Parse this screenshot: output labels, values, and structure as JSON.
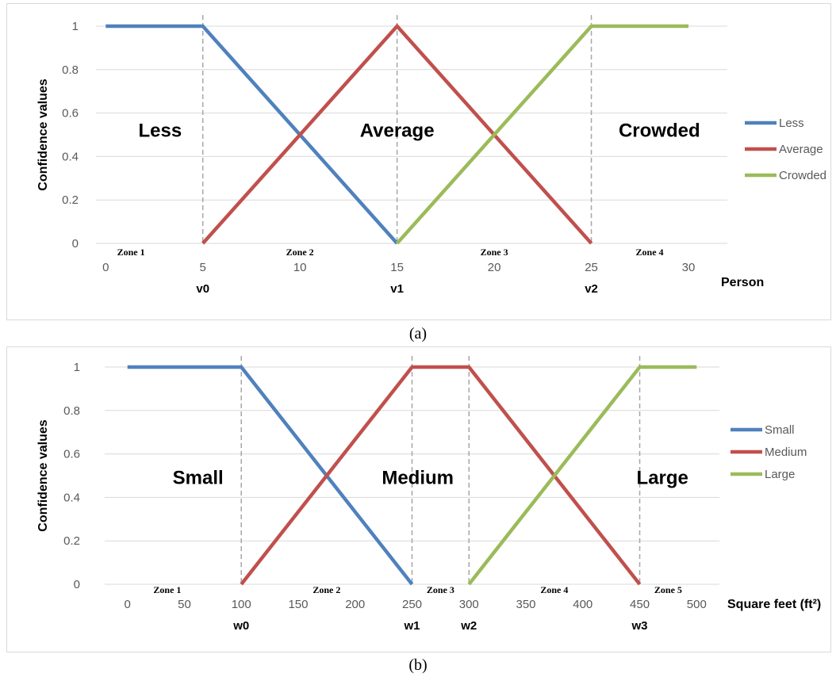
{
  "chart_data": [
    {
      "type": "line",
      "caption": "(a)",
      "ylabel": "Confidence values",
      "xlabel": "Person",
      "ylim": [
        0,
        1
      ],
      "yticks": [
        "0",
        "0.2",
        "0.4",
        "0.6",
        "0.8",
        "1"
      ],
      "yticks_values": [
        0,
        0.2,
        0.4,
        0.6,
        0.8,
        1
      ],
      "xlim": [
        -0.5,
        32
      ],
      "xticks": [
        "0",
        "5",
        "10",
        "15",
        "20",
        "25",
        "30"
      ],
      "xticks_values": [
        0,
        5,
        10,
        15,
        20,
        25,
        30
      ],
      "grid": "horizontal",
      "legend_position": "right",
      "series": [
        {
          "name": "Less",
          "color": "#4f81bd",
          "x": [
            0,
            5,
            15
          ],
          "y": [
            1,
            1,
            0
          ]
        },
        {
          "name": "Average",
          "color": "#c0504d",
          "x": [
            5,
            15,
            25
          ],
          "y": [
            0,
            1,
            0
          ]
        },
        {
          "name": "Crowded",
          "color": "#9bbb59",
          "x": [
            15,
            25,
            30
          ],
          "y": [
            0,
            1,
            1
          ]
        }
      ],
      "thresholds": [
        {
          "label": "v0",
          "x": 5
        },
        {
          "label": "v1",
          "x": 15
        },
        {
          "label": "v2",
          "x": 25
        }
      ],
      "region_labels": [
        {
          "text": "Less",
          "x": 2.8,
          "y": 0.52
        },
        {
          "text": "Average",
          "x": 15,
          "y": 0.52
        },
        {
          "text": "Crowded",
          "x": 28.5,
          "y": 0.52
        }
      ],
      "zone_labels": [
        {
          "text": "Zone 1",
          "x": 1.3
        },
        {
          "text": "Zone 2",
          "x": 10
        },
        {
          "text": "Zone 3",
          "x": 20
        },
        {
          "text": "Zone 4",
          "x": 28
        }
      ]
    },
    {
      "type": "line",
      "caption": "(b)",
      "ylabel": "Confidence values",
      "xlabel": "Square feet (ft²)",
      "ylim": [
        0,
        1
      ],
      "yticks": [
        "0",
        "0.2",
        "0.4",
        "0.6",
        "0.8",
        "1"
      ],
      "yticks_values": [
        0,
        0.2,
        0.4,
        0.6,
        0.8,
        1
      ],
      "xlim": [
        -20,
        520
      ],
      "xticks": [
        "0",
        "50",
        "100",
        "150",
        "200",
        "250",
        "300",
        "350",
        "400",
        "450",
        "500"
      ],
      "xticks_values": [
        0,
        50,
        100,
        150,
        200,
        250,
        300,
        350,
        400,
        450,
        500
      ],
      "grid": "horizontal",
      "legend_position": "right",
      "series": [
        {
          "name": "Small",
          "color": "#4f81bd",
          "x": [
            0,
            100,
            250
          ],
          "y": [
            1,
            1,
            0
          ]
        },
        {
          "name": "Medium",
          "color": "#c0504d",
          "x": [
            100,
            250,
            300,
            450
          ],
          "y": [
            0,
            1,
            1,
            0
          ]
        },
        {
          "name": "Large",
          "color": "#9bbb59",
          "x": [
            300,
            450,
            500
          ],
          "y": [
            0,
            1,
            1
          ]
        }
      ],
      "thresholds": [
        {
          "label": "w0",
          "x": 100
        },
        {
          "label": "w1",
          "x": 250
        },
        {
          "label": "w2",
          "x": 300
        },
        {
          "label": "w3",
          "x": 450
        }
      ],
      "region_labels": [
        {
          "text": "Small",
          "x": 62,
          "y": 0.49
        },
        {
          "text": "Medium",
          "x": 255,
          "y": 0.49
        },
        {
          "text": "Large",
          "x": 470,
          "y": 0.49
        }
      ],
      "zone_labels": [
        {
          "text": "Zone 1",
          "x": 35
        },
        {
          "text": "Zone 2",
          "x": 175
        },
        {
          "text": "Zone 3",
          "x": 275
        },
        {
          "text": "Zone 4",
          "x": 375
        },
        {
          "text": "Zone 5",
          "x": 475
        }
      ]
    }
  ]
}
